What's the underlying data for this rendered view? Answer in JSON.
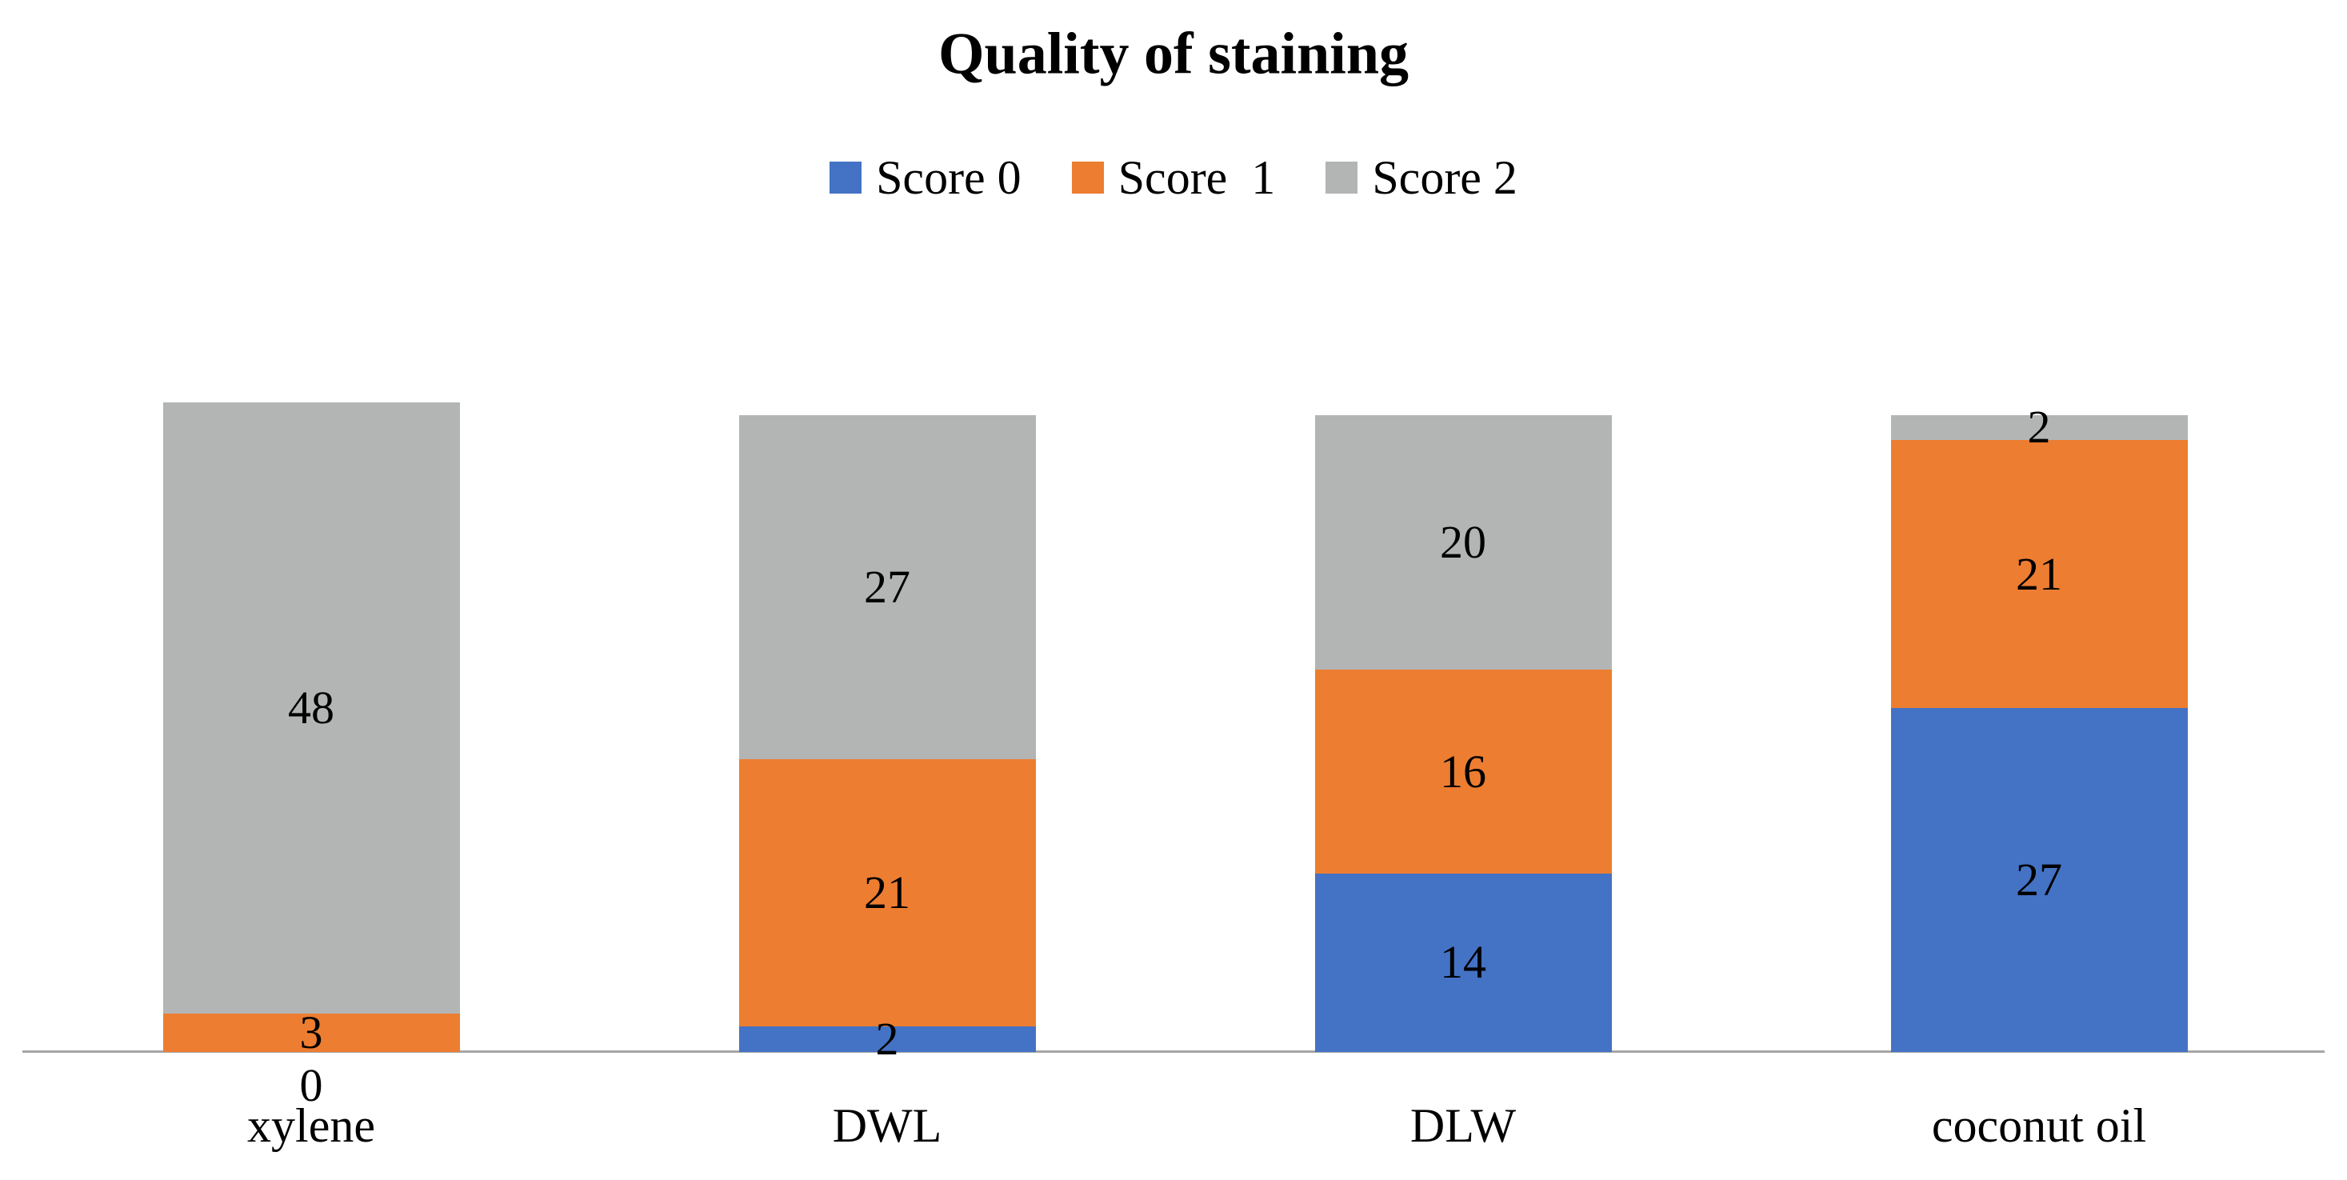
{
  "page": {
    "background": "#FFFFFF",
    "text_color": "#000000"
  },
  "chart_data": {
    "type": "bar",
    "stacked": true,
    "title": "Quality of staining",
    "categories": [
      "xylene",
      "DWL",
      "DLW",
      "coconut oil"
    ],
    "series": [
      {
        "name": "Score 0",
        "color": "#4472C4",
        "values": [
          0,
          2,
          14,
          27
        ]
      },
      {
        "name": "Score  1",
        "color": "#ED7D31",
        "values": [
          3,
          21,
          16,
          21
        ]
      },
      {
        "name": "Score 2",
        "color": "#B3B5B4",
        "values": [
          48,
          27,
          20,
          2
        ]
      }
    ],
    "totals": [
      51,
      50,
      50,
      50
    ],
    "value_labels_shown": true,
    "legend_position": "top",
    "gridlines": false,
    "y_axis_visible": false,
    "axis_line_color": "#A6A6A6",
    "xlabel": "",
    "ylabel": ""
  }
}
